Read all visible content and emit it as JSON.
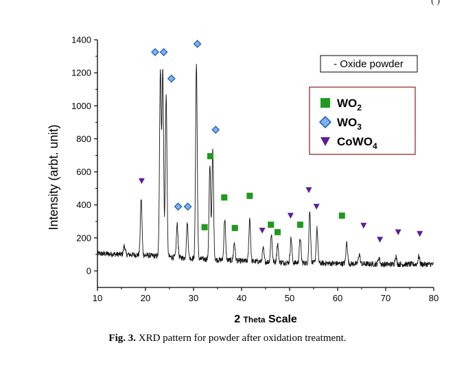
{
  "corner_mark": "(   )",
  "caption": {
    "label": "Fig. 3.",
    "text": " XRD pattern for powder after oxidation treatment."
  },
  "chart_data": {
    "type": "line",
    "title": "",
    "xlabel": "2 Theta Scale",
    "xlabel_parts": {
      "prefix": "2 ",
      "small": "Theta",
      "suffix": " Scale"
    },
    "ylabel": "Intensity (arbt. unit)",
    "xlim": [
      10,
      80
    ],
    "ylim": [
      -100,
      1400
    ],
    "xticks": [
      10,
      20,
      30,
      40,
      50,
      60,
      70,
      80
    ],
    "yticks": [
      0,
      200,
      400,
      600,
      800,
      1000,
      1200,
      1400
    ],
    "grid": false,
    "sample_label": "- Oxide powder",
    "legend": {
      "placement": "upper-right",
      "entries": [
        {
          "base": "WO",
          "sub": "2",
          "marker": "square",
          "color": "#1f9a1f"
        },
        {
          "base": "WO",
          "sub": "3",
          "marker": "diamond",
          "color": "#2a63b5"
        },
        {
          "base": "CoWO",
          "sub": "4",
          "marker": "triangle-down",
          "color": "#5a1f9a"
        }
      ]
    },
    "pattern": {
      "color": "#111111",
      "baseline": [
        [
          10,
          105
        ],
        [
          20,
          95
        ],
        [
          30,
          75
        ],
        [
          40,
          60
        ],
        [
          50,
          50
        ],
        [
          60,
          45
        ],
        [
          70,
          40
        ],
        [
          80,
          40
        ]
      ],
      "peaks": [
        {
          "x": 15.6,
          "h": 55
        },
        {
          "x": 19.1,
          "h": 340
        },
        {
          "x": 23.1,
          "h": 1130
        },
        {
          "x": 23.6,
          "h": 1130
        },
        {
          "x": 24.3,
          "h": 980
        },
        {
          "x": 26.6,
          "h": 200
        },
        {
          "x": 28.7,
          "h": 210
        },
        {
          "x": 30.6,
          "h": 1180
        },
        {
          "x": 33.4,
          "h": 560
        },
        {
          "x": 34.0,
          "h": 660
        },
        {
          "x": 36.5,
          "h": 250
        },
        {
          "x": 38.5,
          "h": 110
        },
        {
          "x": 41.7,
          "h": 260
        },
        {
          "x": 44.5,
          "h": 80
        },
        {
          "x": 46.2,
          "h": 170
        },
        {
          "x": 47.5,
          "h": 110
        },
        {
          "x": 50.3,
          "h": 150
        },
        {
          "x": 52.2,
          "h": 150
        },
        {
          "x": 54.2,
          "h": 320
        },
        {
          "x": 55.7,
          "h": 210
        },
        {
          "x": 61.9,
          "h": 130
        },
        {
          "x": 64.5,
          "h": 60
        },
        {
          "x": 68.6,
          "h": 40
        },
        {
          "x": 72.1,
          "h": 50
        },
        {
          "x": 76.9,
          "h": 50
        }
      ]
    },
    "markers": {
      "WO2": [
        [
          32.3,
          265
        ],
        [
          33.5,
          695
        ],
        [
          36.4,
          445
        ],
        [
          38.6,
          260
        ],
        [
          41.7,
          455
        ],
        [
          46.1,
          280
        ],
        [
          47.5,
          235
        ],
        [
          52.2,
          280
        ],
        [
          60.9,
          335
        ]
      ],
      "WO3": [
        [
          22.0,
          1325
        ],
        [
          23.8,
          1325
        ],
        [
          25.4,
          1165
        ],
        [
          26.8,
          390
        ],
        [
          28.8,
          390
        ],
        [
          30.8,
          1375
        ],
        [
          34.6,
          855
        ]
      ],
      "CoWO4": [
        [
          19.2,
          545
        ],
        [
          44.3,
          245
        ],
        [
          50.2,
          335
        ],
        [
          54.0,
          490
        ],
        [
          55.6,
          390
        ],
        [
          65.4,
          275
        ],
        [
          68.8,
          190
        ],
        [
          72.6,
          235
        ],
        [
          77.1,
          225
        ]
      ]
    }
  }
}
